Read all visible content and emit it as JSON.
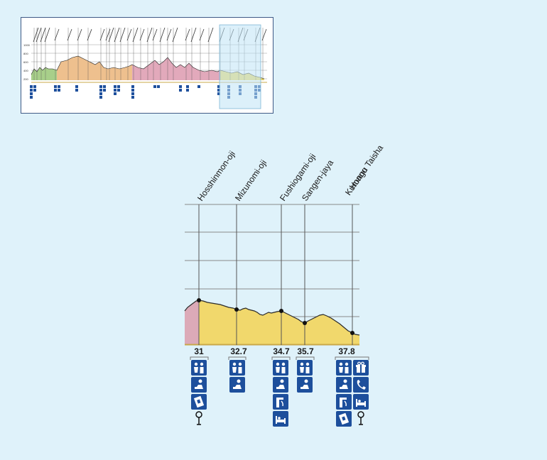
{
  "overview": {
    "y_tick_labels": [
      "1000",
      "800",
      "600",
      "400",
      "200"
    ],
    "selection_region": "Hosshinmon-oji to Kumano Hongu Taisha"
  },
  "detail": {
    "stops": [
      {
        "name": "Hosshinmon-oji",
        "distance": "31"
      },
      {
        "name": "Mizunomi-oji",
        "distance": "32.7"
      },
      {
        "name": "Fushiogami-oji",
        "distance": "34.7"
      },
      {
        "name": "Sangen-jaya",
        "distance": "35.7"
      },
      {
        "name": "Kumano\nHongu Taisha",
        "distance": "37.8"
      }
    ],
    "facility_icons": [
      [
        "toilet-icon",
        "rest-area-icon",
        "vending-machine-icon",
        "bus-stop-icon"
      ],
      [
        "toilet-icon",
        "rest-area-icon"
      ],
      [
        "toilet-icon",
        "rest-area-icon",
        "drinking-water-icon",
        "accommodation-icon"
      ],
      [
        "toilet-icon",
        "rest-area-icon"
      ],
      [
        "toilet-icon",
        "gift-shop-icon",
        "rest-area-icon",
        "telephone-icon",
        "drinking-water-icon",
        "accommodation-icon",
        "vending-machine-icon",
        "bus-stop-icon"
      ]
    ],
    "colors": {
      "pink": "#dcaab8",
      "yellow": "#f1d86c",
      "grid": "#8a8a8a",
      "icon_bg": "#1d4f9c",
      "background": "#dff2fa"
    }
  }
}
